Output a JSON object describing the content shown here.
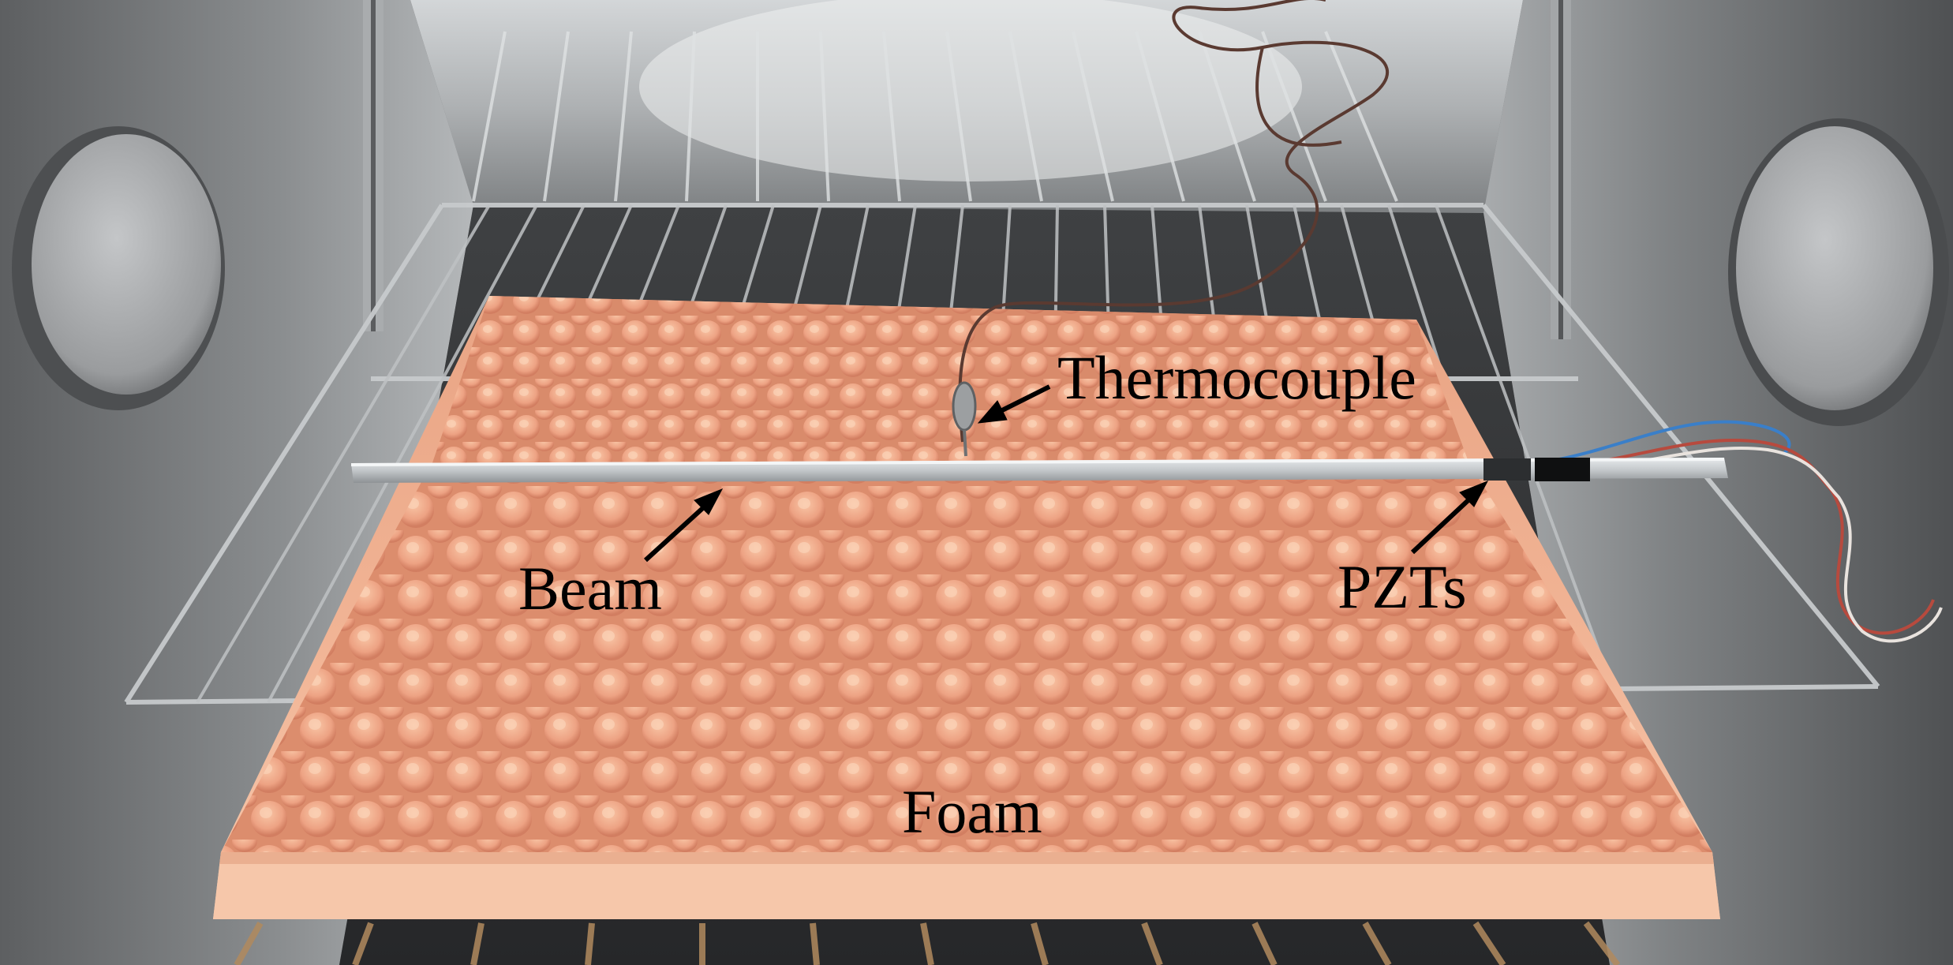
{
  "labels": {
    "thermocouple": "Thermocouple",
    "beam": "Beam",
    "pzts": "PZTs",
    "foam": "Foam"
  }
}
